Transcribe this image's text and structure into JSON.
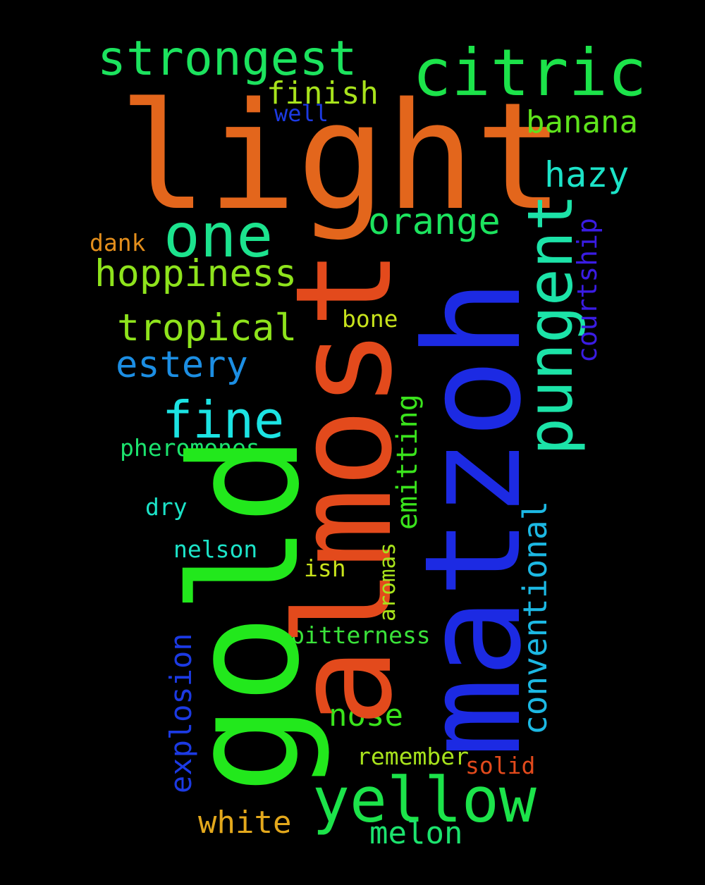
{
  "words": {
    "light": {
      "text": "light",
      "color": "#e3661c"
    },
    "matzoh": {
      "text": "matzoh",
      "color": "#1c2ae3"
    },
    "almost": {
      "text": "almost",
      "color": "#e34a1c"
    },
    "gold": {
      "text": "gold",
      "color": "#22e81c"
    },
    "citric": {
      "text": "citric",
      "color": "#1ce34a"
    },
    "strongest": {
      "text": "strongest",
      "color": "#1ce35e"
    },
    "one": {
      "text": "one",
      "color": "#1ce38e"
    },
    "yellow": {
      "text": "yellow",
      "color": "#1ce34a"
    },
    "pungent": {
      "text": "pungent",
      "color": "#1ce3a8"
    },
    "fine": {
      "text": "fine",
      "color": "#1ce3e3"
    },
    "hoppiness": {
      "text": "hoppiness",
      "color": "#8ee31c"
    },
    "tropical": {
      "text": "tropical",
      "color": "#8ee31c"
    },
    "estery": {
      "text": "estery",
      "color": "#1c8ee3"
    },
    "orange": {
      "text": "orange",
      "color": "#1ce35e"
    },
    "hazy": {
      "text": "hazy",
      "color": "#1ce3c8"
    },
    "banana": {
      "text": "banana",
      "color": "#5ee31c"
    },
    "finish": {
      "text": "finish",
      "color": "#a8e31c"
    },
    "well": {
      "text": "well",
      "color": "#1c3ae3"
    },
    "courtship": {
      "text": "courtship",
      "color": "#3a1ce3"
    },
    "conventional": {
      "text": "conventional",
      "color": "#1cb8e3"
    },
    "emitting": {
      "text": "emitting",
      "color": "#3ae31c"
    },
    "explosion": {
      "text": "explosion",
      "color": "#1c3ae3"
    },
    "white": {
      "text": "white",
      "color": "#e3a81c"
    },
    "nose": {
      "text": "nose",
      "color": "#3ae31c"
    },
    "melon": {
      "text": "melon",
      "color": "#1ce36e"
    },
    "dank": {
      "text": "dank",
      "color": "#e38e1c"
    },
    "bone": {
      "text": "bone",
      "color": "#c8e31c"
    },
    "pheromones": {
      "text": "pheromones",
      "color": "#1ce36e"
    },
    "dry": {
      "text": "dry",
      "color": "#1ce3c8"
    },
    "nelson": {
      "text": "nelson",
      "color": "#1ce3c8"
    },
    "ish": {
      "text": "ish",
      "color": "#c8e31c"
    },
    "aromas": {
      "text": "aromas",
      "color": "#a8e31c"
    },
    "bitterness": {
      "text": "bitterness",
      "color": "#3ae33a"
    },
    "remember": {
      "text": "remember",
      "color": "#a8e31c"
    },
    "solid": {
      "text": "solid",
      "color": "#e34a1c"
    }
  }
}
